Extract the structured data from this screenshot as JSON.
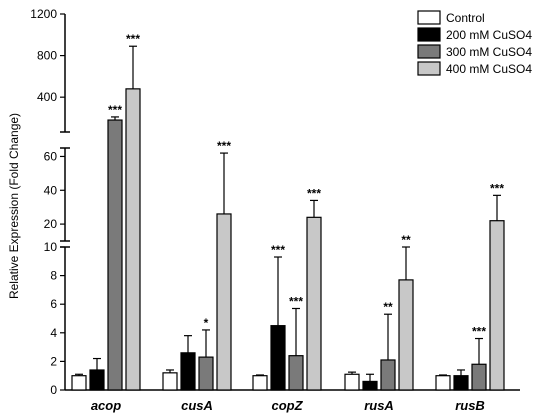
{
  "chart_data": {
    "type": "bar",
    "ylabel": "Relative Expression (Fold Change)",
    "categories": [
      "acop",
      "cusA",
      "copZ",
      "rusA",
      "rusB"
    ],
    "segments": [
      {
        "range": [
          0,
          10
        ],
        "ticks": [
          0,
          2,
          4,
          6,
          8,
          10
        ]
      },
      {
        "range": [
          10,
          65
        ],
        "ticks": [
          20,
          40,
          60
        ]
      },
      {
        "range": [
          65,
          1200
        ],
        "ticks": [
          400,
          800,
          1200
        ]
      }
    ],
    "series": [
      {
        "name": "Control",
        "color": "#ffffff",
        "values": [
          1.0,
          1.2,
          1.0,
          1.1,
          1.0
        ],
        "errors": [
          0.1,
          0.2,
          0.05,
          0.15,
          0.05
        ],
        "sig": [
          "",
          "",
          "",
          "",
          ""
        ]
      },
      {
        "name": "200 mM CuSO4",
        "color": "#000000",
        "values": [
          1.4,
          2.6,
          4.5,
          0.6,
          1.0
        ],
        "errors": [
          0.8,
          1.2,
          4.8,
          0.5,
          0.4
        ],
        "sig": [
          "",
          "",
          "***",
          "",
          ""
        ]
      },
      {
        "name": "300 mM CuSO4",
        "color": "#7a7a7a",
        "values": [
          180,
          2.3,
          2.4,
          2.1,
          1.8
        ],
        "errors": [
          30,
          1.9,
          3.3,
          3.2,
          1.8
        ],
        "sig": [
          "***",
          "*",
          "***",
          "**",
          "***"
        ]
      },
      {
        "name": "400 mM CuSO4",
        "color": "#c8c8c8",
        "values": [
          480,
          26,
          24,
          7.7,
          22
        ],
        "errors": [
          410,
          36,
          10,
          2.3,
          15
        ],
        "sig": [
          "***",
          "***",
          "***",
          "**",
          "***"
        ]
      }
    ]
  }
}
